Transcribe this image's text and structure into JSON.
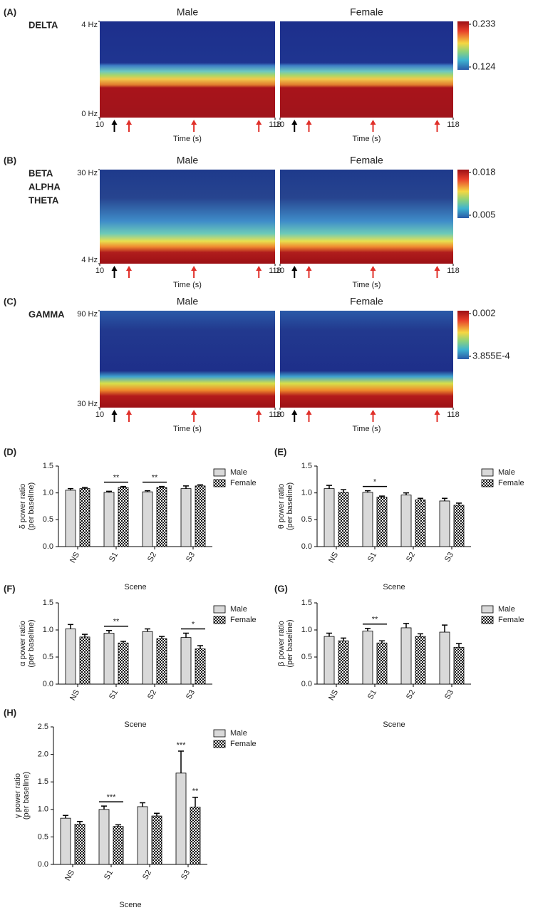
{
  "chart_data": [
    {
      "type": "spectrogram",
      "panel": "(A)",
      "band_label": [
        "DELTA"
      ],
      "panels": [
        "Male",
        "Female"
      ],
      "xlabel": "Time (s)",
      "xlim": [
        10,
        118
      ],
      "xticks": [
        10,
        118
      ],
      "ylim": [
        0,
        4
      ],
      "yticks": [
        {
          "value": 0,
          "label": "0 Hz"
        },
        {
          "value": 4,
          "label": "4 Hz"
        }
      ],
      "colorbar": {
        "lim": [
          0.124,
          0.233
        ],
        "ticks": [
          0.233,
          0.124
        ]
      },
      "events": [
        {
          "x": 19,
          "color": "#000000"
        },
        {
          "x": 28,
          "color": "#e0302a"
        },
        {
          "x": 68,
          "color": "#e0302a"
        },
        {
          "x": 108,
          "color": "#e0302a"
        }
      ]
    },
    {
      "type": "spectrogram",
      "panel": "(B)",
      "band_label": [
        "BETA",
        "ALPHA",
        "THETA"
      ],
      "panels": [
        "Male",
        "Female"
      ],
      "xlabel": "Time (s)",
      "xlim": [
        10,
        118
      ],
      "xticks": [
        10,
        118
      ],
      "ylim": [
        4,
        30
      ],
      "yticks": [
        {
          "value": 4,
          "label": "4 Hz"
        },
        {
          "value": 30,
          "label": "30 Hz"
        }
      ],
      "colorbar": {
        "lim": [
          0.005,
          0.018
        ],
        "ticks": [
          0.018,
          0.005
        ]
      },
      "events": [
        {
          "x": 19,
          "color": "#000000"
        },
        {
          "x": 28,
          "color": "#e0302a"
        },
        {
          "x": 68,
          "color": "#e0302a"
        },
        {
          "x": 108,
          "color": "#e0302a"
        }
      ]
    },
    {
      "type": "spectrogram",
      "panel": "(C)",
      "band_label": [
        "GAMMA"
      ],
      "panels": [
        "Male",
        "Female"
      ],
      "xlabel": "Time (s)",
      "xlim": [
        10,
        118
      ],
      "xticks": [
        10,
        118
      ],
      "ylim": [
        30,
        90
      ],
      "yticks": [
        {
          "value": 30,
          "label": "30 Hz"
        },
        {
          "value": 90,
          "label": "90 Hz"
        }
      ],
      "colorbar": {
        "lim": [
          0.0003855,
          0.002
        ],
        "ticks": [
          0.002,
          {
            "value": 0.0003855,
            "label": "3.855E-4"
          }
        ]
      },
      "events": [
        {
          "x": 19,
          "color": "#000000"
        },
        {
          "x": 28,
          "color": "#e0302a"
        },
        {
          "x": 68,
          "color": "#e0302a"
        },
        {
          "x": 108,
          "color": "#e0302a"
        }
      ]
    },
    {
      "type": "bar",
      "panel": "(D)",
      "ylabel": [
        "δ power ratio",
        "(per baseline)"
      ],
      "xlabel": "Scene",
      "categories": [
        "NS",
        "S1",
        "S2",
        "S3"
      ],
      "ylim": [
        0,
        1.5
      ],
      "yticks": [
        {
          "value": 0,
          "label": "0.0"
        },
        0.5,
        {
          "value": 1,
          "label": "1.0"
        },
        1.5
      ],
      "series": [
        {
          "name": "Male",
          "color": "#d9d9d9",
          "values": [
            1.05,
            1.01,
            1.02,
            1.08
          ],
          "errors": [
            0.03,
            0.02,
            0.02,
            0.05
          ]
        },
        {
          "name": "Female",
          "color": "#000000",
          "pattern": "checker",
          "values": [
            1.08,
            1.1,
            1.1,
            1.13
          ],
          "errors": [
            0.02,
            0.02,
            0.02,
            0.02
          ]
        }
      ],
      "annotations": [
        {
          "text": "**",
          "category": "S1"
        },
        {
          "text": "**",
          "category": "S2"
        }
      ]
    },
    {
      "type": "bar",
      "panel": "(E)",
      "ylabel": [
        "θ power ratio",
        "(per baseline)"
      ],
      "xlabel": "Scene",
      "categories": [
        "NS",
        "S1",
        "S2",
        "S3"
      ],
      "ylim": [
        0,
        1.5
      ],
      "yticks": [
        {
          "value": 0,
          "label": "0.0"
        },
        0.5,
        {
          "value": 1,
          "label": "1.0"
        },
        1.5
      ],
      "series": [
        {
          "name": "Male",
          "color": "#d9d9d9",
          "values": [
            1.08,
            1.01,
            0.96,
            0.85
          ],
          "errors": [
            0.06,
            0.03,
            0.04,
            0.05
          ]
        },
        {
          "name": "Female",
          "color": "#000000",
          "pattern": "checker",
          "values": [
            1.01,
            0.92,
            0.87,
            0.77
          ],
          "errors": [
            0.05,
            0.02,
            0.03,
            0.04
          ]
        }
      ],
      "annotations": [
        {
          "text": "*",
          "category": "S1"
        }
      ]
    },
    {
      "type": "bar",
      "panel": "(F)",
      "ylabel": [
        "α power ratio",
        "(per baseline)"
      ],
      "xlabel": "Scene",
      "categories": [
        "NS",
        "S1",
        "S2",
        "S3"
      ],
      "ylim": [
        0,
        1.5
      ],
      "yticks": [
        {
          "value": 0,
          "label": "0.0"
        },
        0.5,
        {
          "value": 1,
          "label": "1.0"
        },
        1.5
      ],
      "series": [
        {
          "name": "Male",
          "color": "#d9d9d9",
          "values": [
            1.02,
            0.94,
            0.97,
            0.86
          ],
          "errors": [
            0.08,
            0.05,
            0.05,
            0.08
          ]
        },
        {
          "name": "Female",
          "color": "#000000",
          "pattern": "checker",
          "values": [
            0.87,
            0.76,
            0.84,
            0.65
          ],
          "errors": [
            0.05,
            0.03,
            0.04,
            0.06
          ]
        }
      ],
      "annotations": [
        {
          "text": "**",
          "category": "S1"
        },
        {
          "text": "*",
          "category": "S3"
        }
      ]
    },
    {
      "type": "bar",
      "panel": "(G)",
      "ylabel": [
        "β power ratio",
        "(per baseline)"
      ],
      "xlabel": "Scene",
      "categories": [
        "NS",
        "S1",
        "S2",
        "S3"
      ],
      "ylim": [
        0,
        1.5
      ],
      "yticks": [
        {
          "value": 0,
          "label": "0.0"
        },
        0.5,
        {
          "value": 1,
          "label": "1.0"
        },
        1.5
      ],
      "series": [
        {
          "name": "Male",
          "color": "#d9d9d9",
          "values": [
            0.88,
            0.98,
            1.04,
            0.96
          ],
          "errors": [
            0.06,
            0.05,
            0.08,
            0.13
          ]
        },
        {
          "name": "Female",
          "color": "#000000",
          "pattern": "checker",
          "values": [
            0.8,
            0.76,
            0.88,
            0.68
          ],
          "errors": [
            0.05,
            0.04,
            0.05,
            0.07
          ]
        }
      ],
      "annotations": [
        {
          "text": "**",
          "category": "S1"
        }
      ]
    },
    {
      "type": "bar",
      "panel": "(H)",
      "ylabel": [
        "γ power ratio",
        "(per baseline)"
      ],
      "xlabel": "Scene",
      "categories": [
        "NS",
        "S1",
        "S2",
        "S3"
      ],
      "ylim": [
        0,
        2.5
      ],
      "yticks": [
        {
          "value": 0,
          "label": "0.0"
        },
        0.5,
        {
          "value": 1,
          "label": "1.0"
        },
        1.5,
        {
          "value": 2,
          "label": "2.0"
        },
        2.5
      ],
      "series": [
        {
          "name": "Male",
          "color": "#d9d9d9",
          "values": [
            0.84,
            1.0,
            1.05,
            1.66
          ],
          "errors": [
            0.05,
            0.06,
            0.07,
            0.4
          ]
        },
        {
          "name": "Female",
          "color": "#000000",
          "pattern": "checker",
          "values": [
            0.73,
            0.69,
            0.88,
            1.04
          ],
          "errors": [
            0.05,
            0.03,
            0.05,
            0.18
          ]
        }
      ],
      "annotations": [
        {
          "text": "***",
          "category": "S1"
        },
        {
          "text": "***",
          "category": "S3",
          "series": "Male"
        },
        {
          "text": "**",
          "category": "S3",
          "series": "Female"
        }
      ]
    }
  ]
}
